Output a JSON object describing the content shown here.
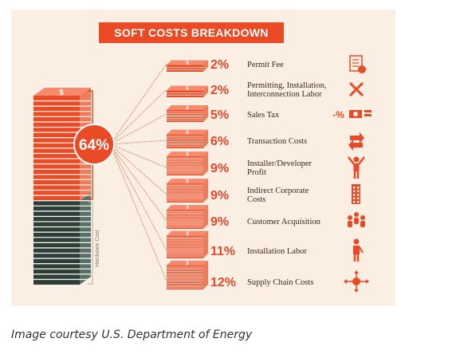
{
  "caption": "Image courtesy U.S. Department of Energy",
  "colors": {
    "accent": "#ea4a25",
    "dark": "#2c3e3a",
    "panel": "#fbeee2"
  },
  "chart_data": {
    "type": "bar",
    "title": "SOFT COSTS BREAKDOWN",
    "total_label": "64%",
    "total_value": 64,
    "hardware_label": "Hardware Cost",
    "categories": [
      [
        "Permit Fee"
      ],
      [
        "Permitting, Installation,",
        "Interconnection Labor"
      ],
      [
        "Sales Tax"
      ],
      [
        "Transaction Costs"
      ],
      [
        "Installer/Developer",
        "Profit"
      ],
      [
        "Indirect Corporate",
        "Costs"
      ],
      [
        "Customer Acquisition"
      ],
      [
        "Installation Labor"
      ],
      [
        "Supply Chain Costs"
      ]
    ],
    "value_labels": [
      "2%",
      "2%",
      "5%",
      "6%",
      "9%",
      "9%",
      "9%",
      "11%",
      "12%"
    ],
    "values": [
      2,
      2,
      5,
      6,
      9,
      9,
      9,
      11,
      12
    ],
    "icons": [
      "document-check-icon",
      "tools-icon",
      "tax-money-icon",
      "transfer-arrows-icon",
      "person-raising-arms-icon",
      "office-building-icon",
      "group-people-icon",
      "worker-icon",
      "distribution-hub-icon"
    ],
    "sales_tax_icon_text": "-%"
  }
}
